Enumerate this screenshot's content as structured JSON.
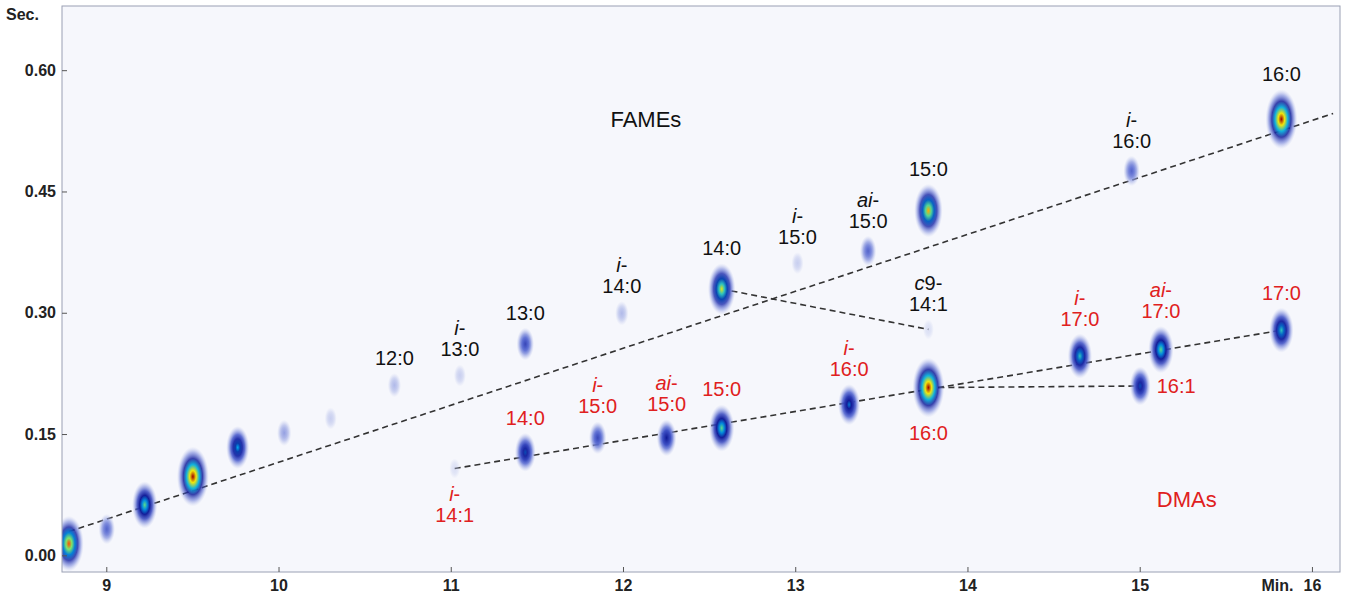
{
  "chart_data": {
    "type": "scatter",
    "x_label": "Min.",
    "y_label": "Sec.",
    "xlim": [
      8.74,
      16.16
    ],
    "ylim": [
      -0.02,
      0.68
    ],
    "xticks": [
      9,
      10,
      11,
      12,
      13,
      14,
      15,
      16
    ],
    "yticks": [
      {
        "value": 0,
        "label": "0.00"
      },
      0.15,
      {
        "value": 0.3,
        "label": "0.30"
      },
      0.45,
      {
        "value": 0.6,
        "label": "0.60"
      }
    ],
    "grid": false,
    "marker": "spot",
    "series": [
      {
        "color": "#111111",
        "labels": [
          "12:0",
          "i-13:0",
          "13:0",
          "i-14:0",
          "14:0",
          "i-15:0",
          "ai-15:0",
          "15:0",
          "c9-14:1",
          "i-16:0",
          "16:0"
        ],
        "x": [
          10.67,
          11.05,
          11.43,
          11.99,
          12.57,
          13.01,
          13.42,
          13.77,
          13.77,
          14.95,
          15.82
        ],
        "values": [
          0.211,
          0.223,
          0.262,
          0.3,
          0.33,
          0.362,
          0.377,
          0.427,
          0.28,
          0.476,
          0.54
        ],
        "intensity": [
          0.15,
          0.1,
          0.35,
          0.15,
          0.8,
          0.1,
          0.3,
          0.85,
          0.05,
          0.3,
          1.0
        ]
      },
      {
        "color": "#e02020",
        "labels": [
          "i-14:1",
          "14:0",
          "i-15:0",
          "ai-15:0",
          "15:0",
          "i-16:0",
          "16:0",
          "i-17:0",
          "16:1",
          "ai-17:0",
          "17:0"
        ],
        "x": [
          11.02,
          11.43,
          11.85,
          12.25,
          12.57,
          13.31,
          13.77,
          14.65,
          15.0,
          15.12,
          15.82
        ],
        "values": [
          0.108,
          0.128,
          0.146,
          0.146,
          0.158,
          0.187,
          0.208,
          0.247,
          0.21,
          0.255,
          0.279
        ],
        "intensity": [
          0.05,
          0.5,
          0.35,
          0.45,
          0.7,
          0.55,
          1.0,
          0.65,
          0.5,
          0.7,
          0.65
        ]
      },
      {
        "color": "#1a2a9a",
        "x": [
          8.78,
          9.0,
          9.22,
          9.5,
          9.76,
          10.03,
          10.3
        ],
        "values": [
          0.015,
          0.033,
          0.063,
          0.098,
          0.134,
          0.152,
          0.17
        ],
        "intensity": [
          0.9,
          0.3,
          0.7,
          1.0,
          0.6,
          0.2,
          0.1
        ]
      }
    ],
    "lines": [
      {
        "x": [
          8.78,
          16.12
        ],
        "values": [
          0.03,
          0.547
        ],
        "line_style": "dashed"
      },
      {
        "x": [
          12.57,
          13.77
        ],
        "values": [
          0.33,
          0.28
        ],
        "line_style": "dashed"
      },
      {
        "x": [
          11.02,
          15.82
        ],
        "values": [
          0.108,
          0.279
        ],
        "line_style": "dashed"
      },
      {
        "x": [
          13.77,
          15.0
        ],
        "values": [
          0.208,
          0.21
        ],
        "line_style": "dashed"
      }
    ],
    "annotations": [
      {
        "text": "FAMEs",
        "x": 12.13,
        "y": 0.53,
        "color": "#111111"
      },
      {
        "text": "DMAs",
        "x": 15.27,
        "y": 0.06,
        "color": "#e02020"
      }
    ]
  }
}
